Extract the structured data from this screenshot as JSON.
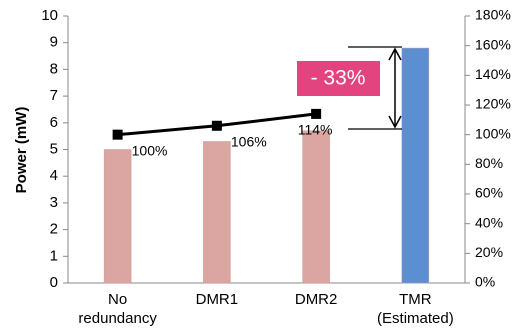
{
  "chart_data": {
    "type": "bar",
    "y_label": "Power (mW)",
    "categories": [
      "No redundancy",
      "DMR1",
      "DMR2",
      "TMR (Estimated)"
    ],
    "series": [
      {
        "type": "bar",
        "values": [
          5.0,
          5.3,
          5.7,
          8.8
        ],
        "colors": [
          "#dba6a1",
          "#dba6a1",
          "#dba6a1",
          "#5b8fd2"
        ]
      },
      {
        "type": "line",
        "axis": "y2",
        "color": "#000000",
        "values": [
          100,
          106,
          114,
          null
        ],
        "value_labels": [
          "100%",
          "106%",
          "114%",
          null
        ]
      }
    ],
    "ylim": [
      0,
      10
    ],
    "yticks": [
      0,
      1,
      2,
      3,
      4,
      5,
      6,
      7,
      8,
      9,
      10
    ],
    "y2lim": [
      0,
      180
    ],
    "y2ticks": [
      {
        "value": 0,
        "label": "0%"
      },
      {
        "value": 20,
        "label": "20%"
      },
      {
        "value": 40,
        "label": "40%"
      },
      {
        "value": 60,
        "label": "60%"
      },
      {
        "value": 80,
        "label": "80%"
      },
      {
        "value": 100,
        "label": "100%"
      },
      {
        "value": 120,
        "label": "120%"
      },
      {
        "value": 140,
        "label": "140%"
      },
      {
        "value": 160,
        "label": "160%"
      },
      {
        "value": 180,
        "label": "180%"
      }
    ],
    "annotation": "- 33%",
    "annotation_color": "#e2447f",
    "grid": false
  }
}
